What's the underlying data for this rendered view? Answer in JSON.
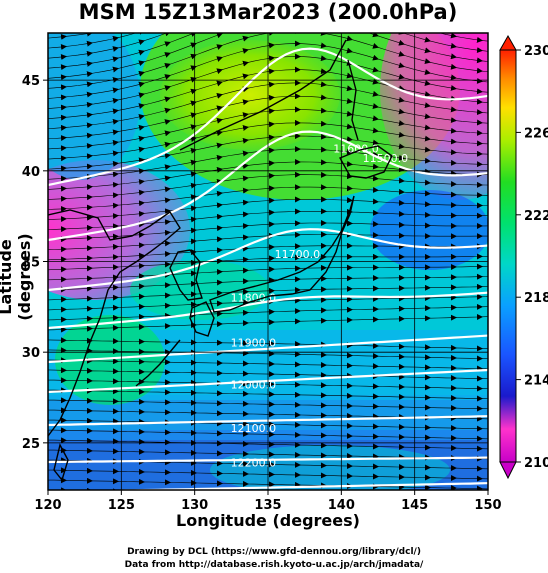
{
  "title": "MSM 15Z13Mar2023 (200.0hPa)",
  "xlabel": "Longitude (degrees)",
  "ylabel": "Latitude  (degrees)",
  "footer_line1": "Drawing by DCL (https://www.gfd-dennou.org/library/dcl/)",
  "footer_line2": "Data from http://database.rish.kyoto-u.ac.jp/arch/jmadata/",
  "chart_data": {
    "type": "heatmap",
    "title": "MSM 15Z13Mar2023 (200.0hPa)",
    "xlabel": "Longitude (degrees)",
    "ylabel": "Latitude  (degrees)",
    "xlim": [
      120,
      150
    ],
    "ylim": [
      22.4,
      47.6
    ],
    "x_ticks": [
      120,
      125,
      130,
      135,
      140,
      145,
      150
    ],
    "y_ticks": [
      25,
      30,
      35,
      40,
      45
    ],
    "colorbar": {
      "range": [
        210,
        230
      ],
      "ticks": [
        210,
        214,
        218,
        222,
        226,
        230
      ]
    },
    "contours": [
      {
        "label": "11700.0",
        "lon": 137,
        "lat": 35.2
      },
      {
        "label": "11800.0",
        "lon": 134,
        "lat": 32.8
      },
      {
        "label": "11900.0",
        "lon": 134,
        "lat": 30.3
      },
      {
        "label": "12000.0",
        "lon": 134,
        "lat": 28.0
      },
      {
        "label": "12100.0",
        "lon": 134,
        "lat": 25.6
      },
      {
        "label": "12200.0",
        "lon": 134,
        "lat": 23.7
      },
      {
        "label": "11600.0",
        "lon": 141,
        "lat": 41.0
      },
      {
        "label": "11500.0",
        "lon": 143,
        "lat": 40.5
      }
    ]
  }
}
